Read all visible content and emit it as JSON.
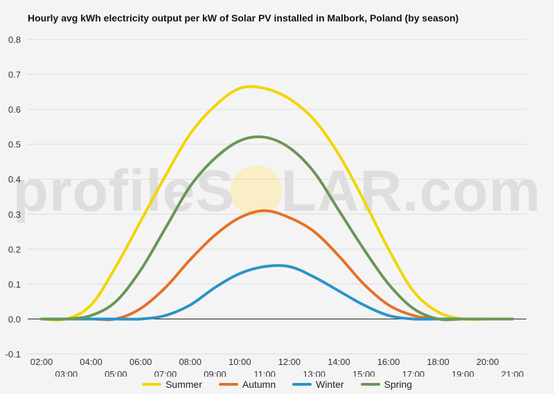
{
  "title": "Hourly avg kWh electricity output per kW of Solar PV installed in Malbork, Poland (by season)",
  "watermark": {
    "prefix": "profileS",
    "suffix": "LAR.com"
  },
  "chart_data": {
    "type": "line",
    "title": "Hourly avg kWh electricity output per kW of Solar PV installed in Malbork, Poland (by season)",
    "ylim": [
      -0.1,
      0.8
    ],
    "yticks": [
      "-0.1",
      "0.0",
      "0.1",
      "0.2",
      "0.3",
      "0.4",
      "0.5",
      "0.6",
      "0.7",
      "0.8"
    ],
    "xlim": [
      2,
      21
    ],
    "xticks_top": [
      "02:00",
      "04:00",
      "06:00",
      "08:00",
      "10:00",
      "12:00",
      "14:00",
      "16:00",
      "18:00",
      "20:00"
    ],
    "xticks_bottom": [
      "03:00",
      "05:00",
      "07:00",
      "09:00",
      "11:00",
      "13:00",
      "15:00",
      "17:00",
      "19:00",
      "21:00"
    ],
    "grid": true,
    "legend_position": "bottom",
    "x": [
      2,
      3,
      4,
      5,
      6,
      7,
      8,
      9,
      10,
      11,
      12,
      13,
      14,
      15,
      16,
      17,
      18,
      19,
      20,
      21
    ],
    "series": [
      {
        "name": "Summer",
        "color": "#f2d500",
        "values": [
          0.0,
          0.0,
          0.04,
          0.15,
          0.28,
          0.41,
          0.53,
          0.61,
          0.66,
          0.66,
          0.63,
          0.57,
          0.47,
          0.34,
          0.2,
          0.08,
          0.02,
          0.0,
          0.0,
          0.0
        ]
      },
      {
        "name": "Autumn",
        "color": "#e3712a",
        "values": [
          0.0,
          0.0,
          0.0,
          0.0,
          0.03,
          0.09,
          0.17,
          0.24,
          0.29,
          0.31,
          0.29,
          0.25,
          0.18,
          0.1,
          0.04,
          0.01,
          0.0,
          0.0,
          0.0,
          0.0
        ]
      },
      {
        "name": "Winter",
        "color": "#2a94c7",
        "values": [
          0.0,
          0.0,
          0.0,
          0.0,
          0.0,
          0.01,
          0.04,
          0.09,
          0.13,
          0.15,
          0.15,
          0.12,
          0.08,
          0.04,
          0.01,
          0.0,
          0.0,
          0.0,
          0.0,
          0.0
        ]
      },
      {
        "name": "Spring",
        "color": "#6b9655",
        "values": [
          0.0,
          0.0,
          0.01,
          0.05,
          0.14,
          0.26,
          0.38,
          0.46,
          0.51,
          0.52,
          0.49,
          0.42,
          0.31,
          0.2,
          0.1,
          0.03,
          0.0,
          0.0,
          0.0,
          0.0
        ]
      }
    ]
  }
}
